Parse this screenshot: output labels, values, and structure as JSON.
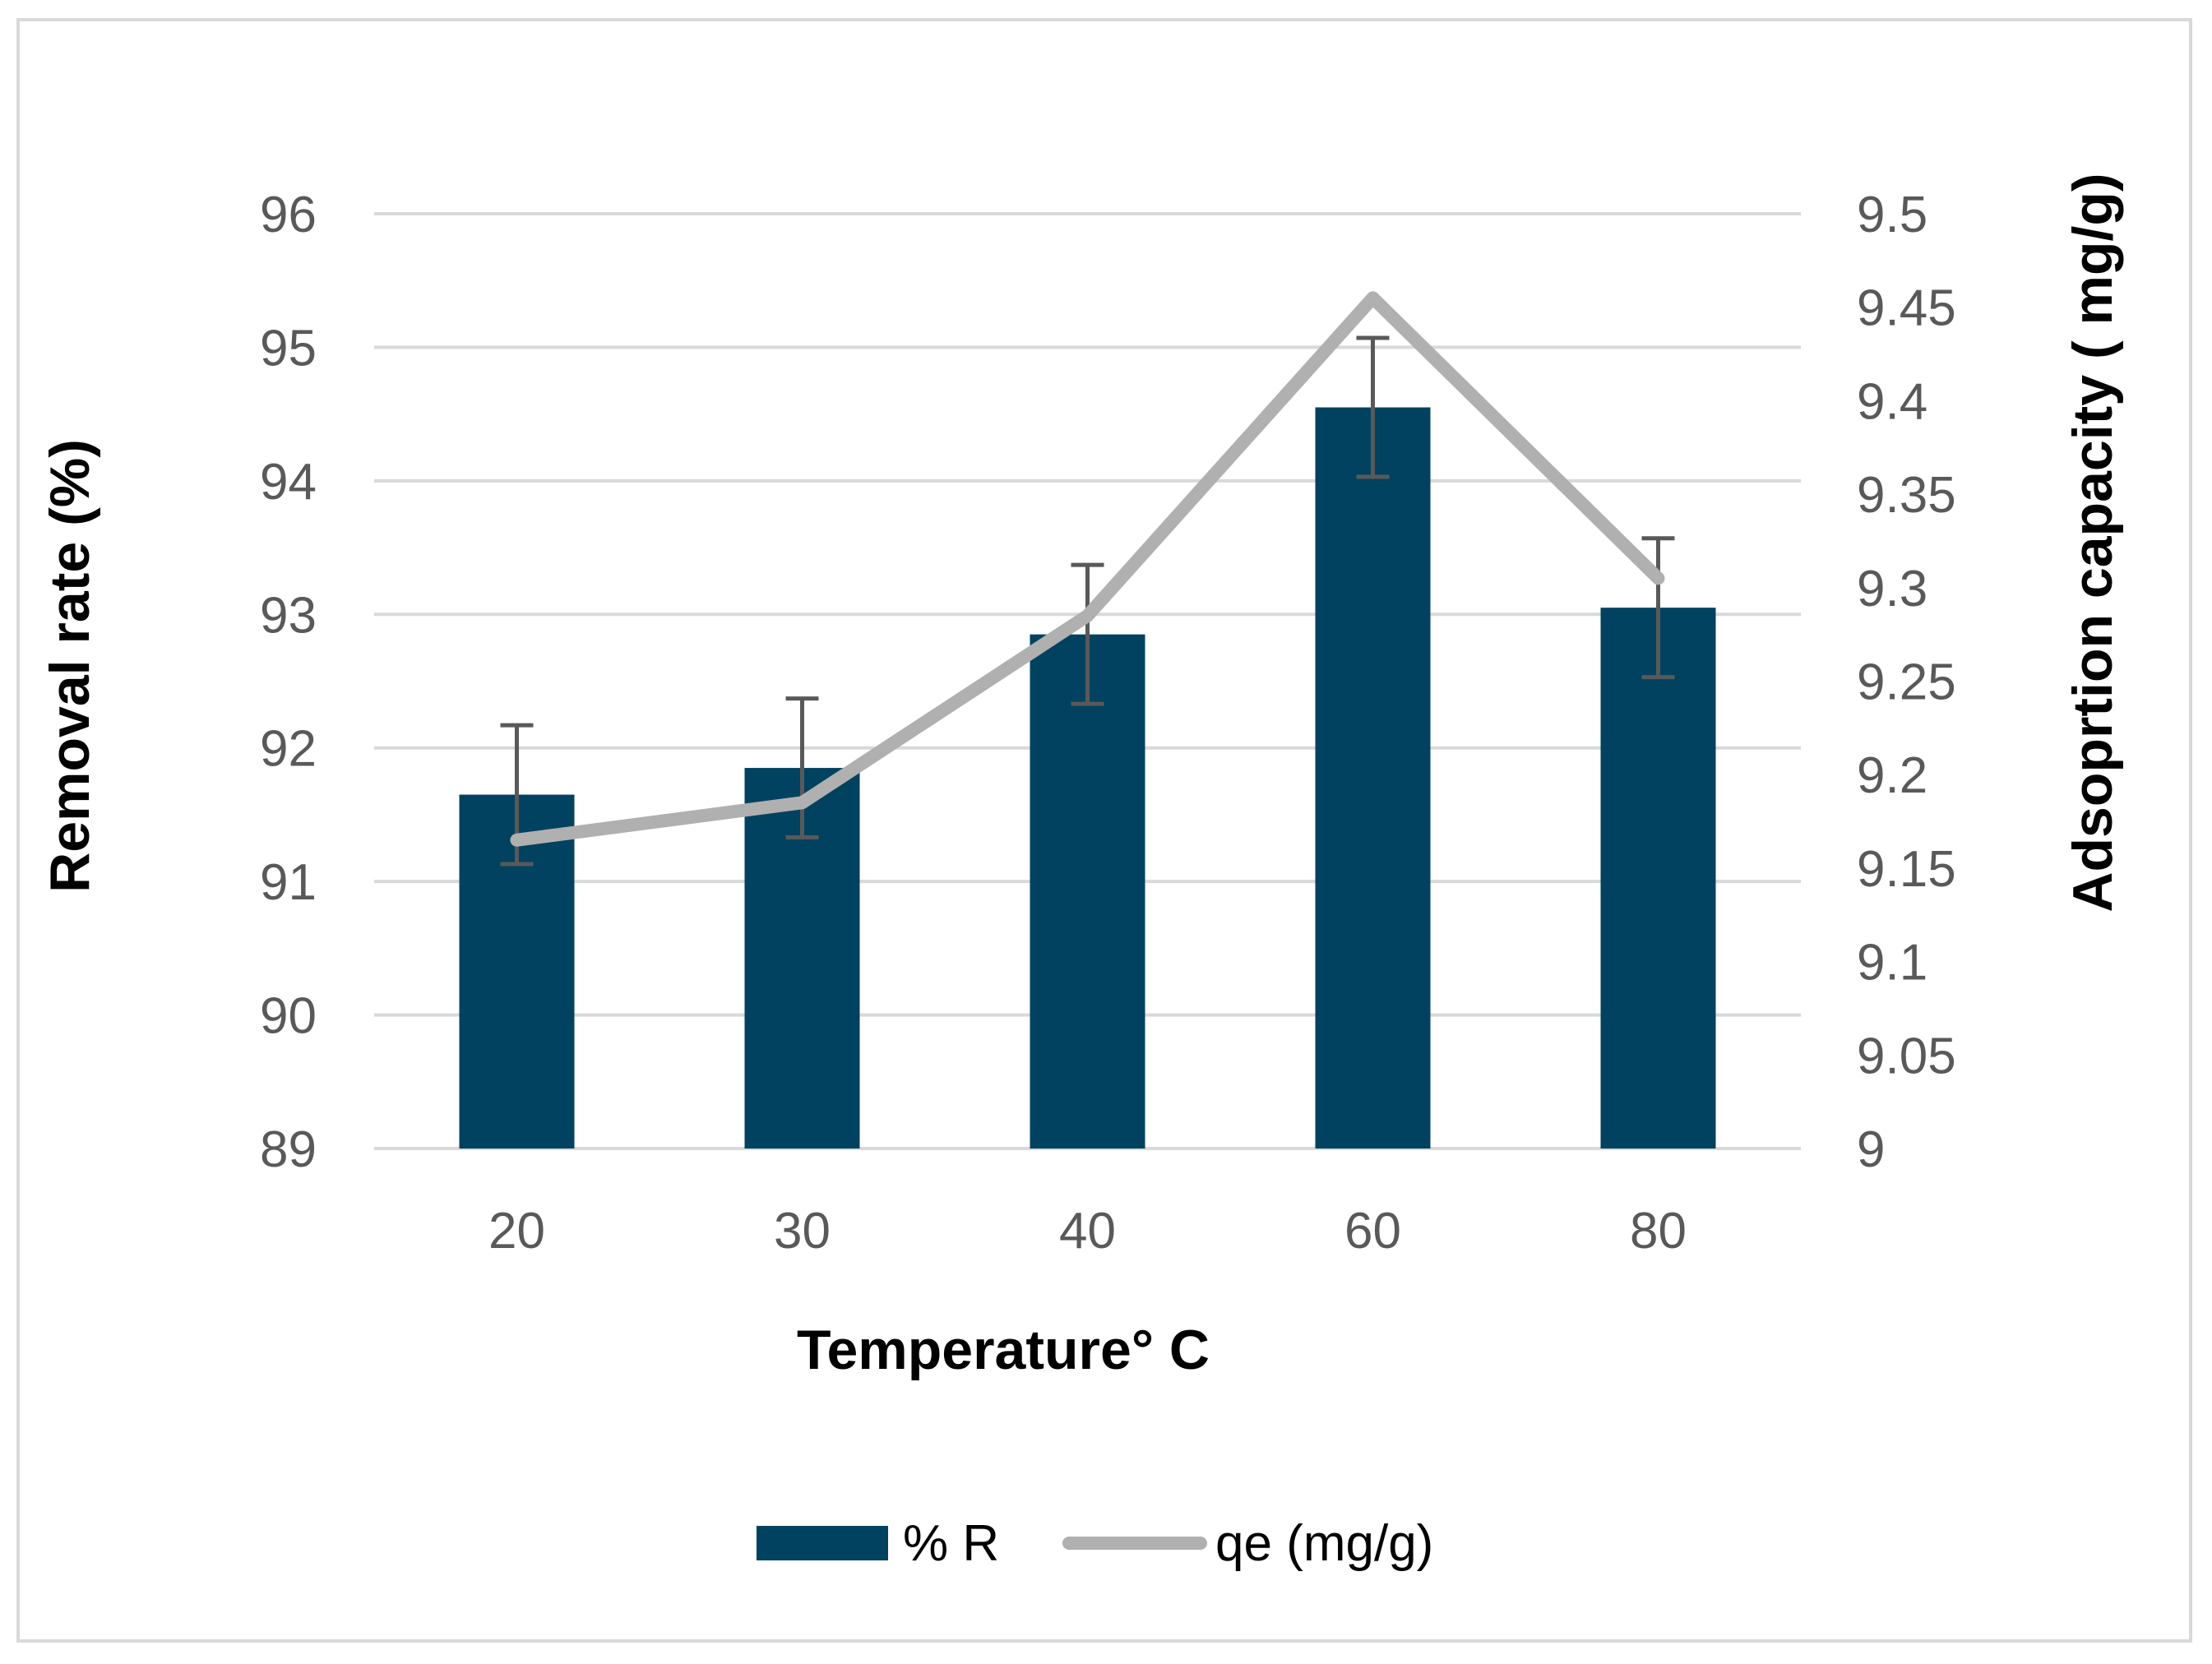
{
  "chart_data": {
    "type": "bar",
    "title": "",
    "categories": [
      "20",
      "30",
      "40",
      "60",
      "80"
    ],
    "xlabel": "Temperature° C",
    "ylabel": "Removal rate (%)",
    "y2label": "Adsoprtion capacity ( mg/g)",
    "ylim": [
      89,
      96
    ],
    "y_ticks": [
      "89",
      "90",
      "91",
      "92",
      "93",
      "94",
      "95",
      "96"
    ],
    "y2lim": [
      9,
      9.5
    ],
    "y2_ticks": [
      "9",
      "9.05",
      "9.1",
      "9.15",
      "9.2",
      "9.25",
      "9.3",
      "9.35",
      "9.4",
      "9.45",
      "9.5"
    ],
    "grid": true,
    "legend_position": "bottom",
    "series": [
      {
        "name": "% R",
        "type": "bar",
        "axis": "left",
        "color": "#00425f",
        "values": [
          91.65,
          91.85,
          92.85,
          94.55,
          93.05
        ],
        "error": [
          0.52,
          0.52,
          0.52,
          0.52,
          0.52
        ]
      },
      {
        "name": "qe (mg/g)",
        "type": "line",
        "axis": "right",
        "color": "#b0b0b0",
        "values": [
          9.165,
          9.185,
          9.285,
          9.455,
          9.305
        ]
      }
    ]
  }
}
